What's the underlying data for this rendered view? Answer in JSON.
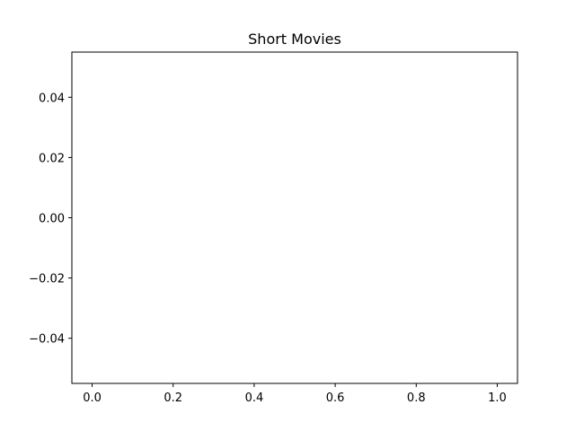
{
  "chart_data": {
    "type": "line",
    "title": "Short Movies",
    "xlabel": "",
    "ylabel": "",
    "series": [],
    "xlim": [
      -0.05,
      1.05
    ],
    "ylim": [
      -0.055,
      0.055
    ],
    "xticks": [
      0.0,
      0.2,
      0.4,
      0.6,
      0.8,
      1.0
    ],
    "xtick_labels": [
      "0.0",
      "0.2",
      "0.4",
      "0.6",
      "0.8",
      "1.0"
    ],
    "yticks": [
      -0.04,
      -0.02,
      0.0,
      0.02,
      0.04
    ],
    "ytick_labels": [
      "−0.04",
      "−0.02",
      "0.00",
      "0.02",
      "0.04"
    ],
    "grid": false,
    "legend": "none"
  }
}
